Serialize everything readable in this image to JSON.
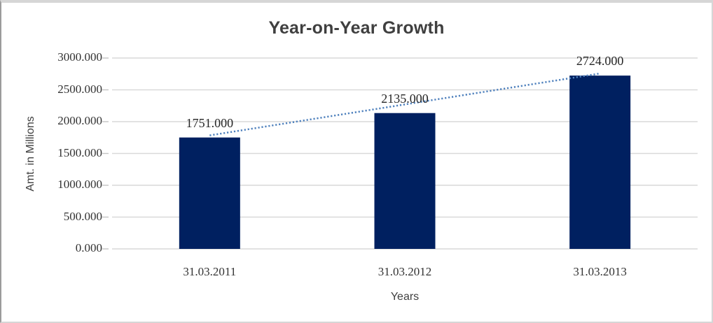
{
  "chart_data": {
    "type": "bar",
    "title": "Year-on-Year Growth",
    "xlabel": "Years",
    "ylabel": "Amt. in Millions",
    "categories": [
      "31.03.2011",
      "31.03.2012",
      "31.03.2013"
    ],
    "values": [
      1751,
      2135,
      2724
    ],
    "value_labels": [
      "1751.000",
      "2135.000",
      "2724.000"
    ],
    "ylim": [
      0,
      3000
    ],
    "y_ticks": [
      0,
      500,
      1000,
      1500,
      2000,
      2500,
      3000
    ],
    "y_tick_labels": [
      "0.000",
      "500.000",
      "1000.000",
      "1500.000",
      "2000.000",
      "2500.000",
      "3000.000"
    ],
    "grid": true,
    "legend": "none",
    "trendline": {
      "type": "linear",
      "style": "dotted",
      "from_point": {
        "category": "31.03.2011",
        "value": 1751
      },
      "to_point": {
        "category": "31.03.2013",
        "value": 2724
      }
    },
    "colors": {
      "bar": "#002060",
      "trendline": "#4F81BD",
      "gridline": "#D9D9D9",
      "axis_tick": "#C3C3C3",
      "title_text": "#3F3F3F",
      "tick_text": "#333333",
      "background": "#FFFFFF",
      "border": "#D6D6D6"
    }
  }
}
